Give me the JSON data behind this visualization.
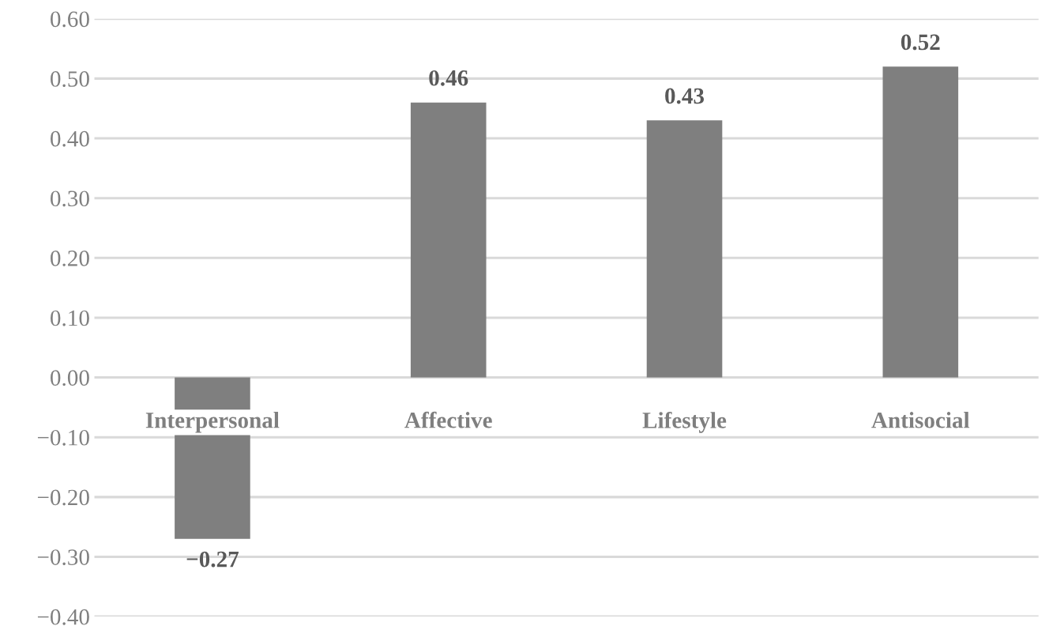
{
  "chart_data": {
    "type": "bar",
    "categories": [
      "Interpersonal",
      "Affective",
      "Lifestyle",
      "Antisocial"
    ],
    "values": [
      -0.27,
      0.46,
      0.43,
      0.52
    ],
    "value_labels": [
      "−0.27",
      "0.46",
      "0.43",
      "0.52"
    ],
    "color": "#7f7f7f",
    "ylim": [
      -0.4,
      0.6
    ],
    "yticks": [
      {
        "value": -0.4,
        "label": "−0.40"
      },
      {
        "value": -0.3,
        "label": "−0.30"
      },
      {
        "value": -0.2,
        "label": "−0.20"
      },
      {
        "value": -0.1,
        "label": "−0.10"
      },
      {
        "value": 0,
        "label": "0.00"
      },
      {
        "value": 0.1,
        "label": "0.10"
      },
      {
        "value": 0.2,
        "label": "0.20"
      },
      {
        "value": 0.3,
        "label": "0.30"
      },
      {
        "value": 0.4,
        "label": "0.40"
      },
      {
        "value": 0.5,
        "label": "0.50"
      },
      {
        "value": 0.6,
        "label": "0.60"
      }
    ],
    "grid": "y"
  }
}
